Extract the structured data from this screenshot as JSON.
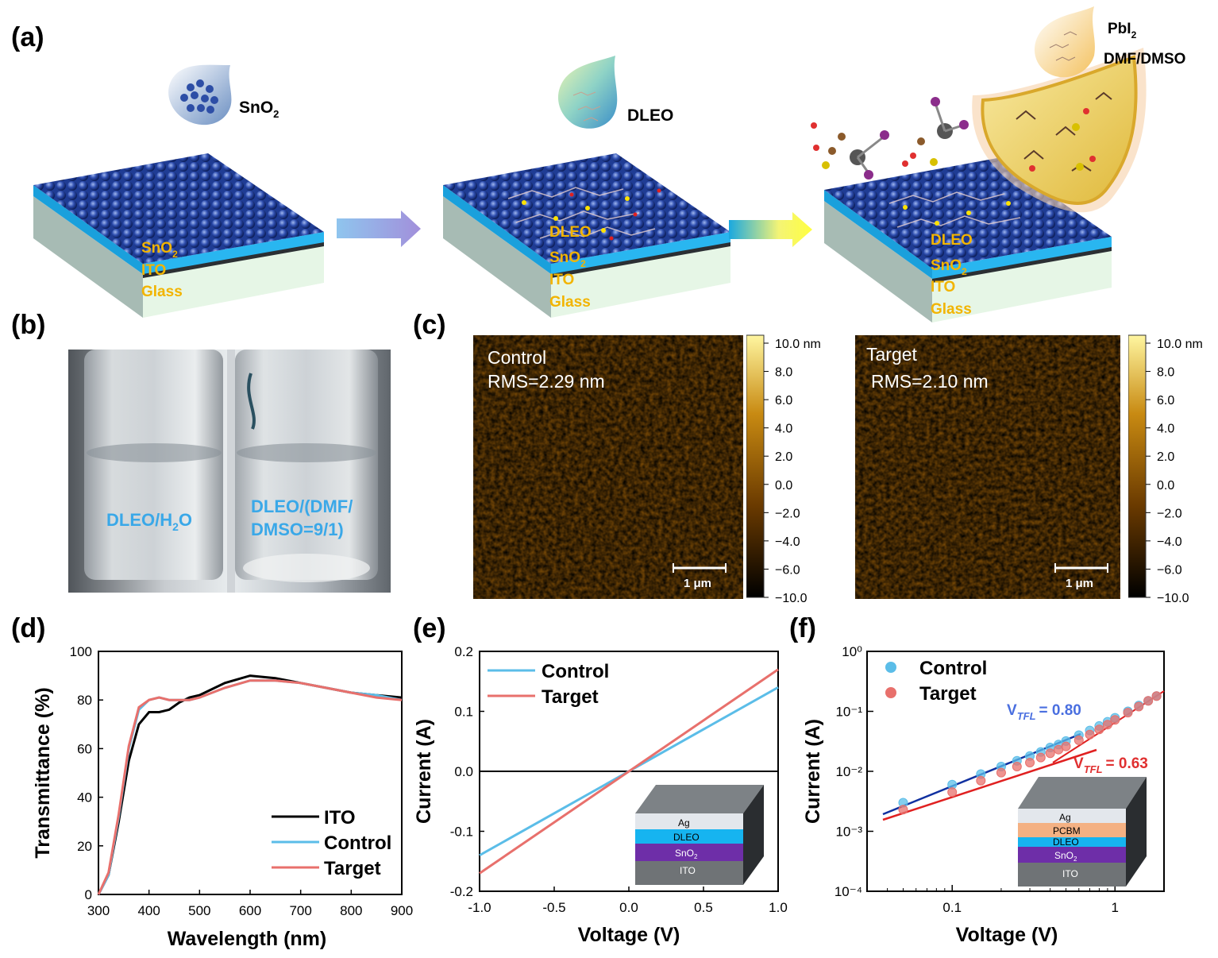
{
  "panels": {
    "a": {
      "label": "(a)",
      "drop1": "SnO",
      "drop1_sub": "2",
      "drop2": "DLEO",
      "shield1": "PbI",
      "shield1_sub": "2",
      "shield2": "DMF/DMSO",
      "stack1": {
        "l1": "SnO",
        "l1_sub": "2",
        "l2": "ITO",
        "l3": "Glass"
      },
      "stack2": {
        "l0": "DLEO",
        "l1": "SnO",
        "l1_sub": "2",
        "l2": "ITO",
        "l3": "Glass"
      },
      "stack3": {
        "l0": "DLEO",
        "l1": "SnO",
        "l1_sub": "2",
        "l2": "ITO",
        "l3": "Glass"
      }
    },
    "b": {
      "label": "(b)",
      "vial1": "DLEO/H",
      "vial1_sub": "2",
      "vial1_end": "O",
      "vial2_line1": "DLEO/(DMF/",
      "vial2_line2": "DMSO=9/1)"
    },
    "c": {
      "label": "(c)",
      "left": {
        "title": "Control",
        "rms": "RMS=2.29 nm",
        "scale": "1 μm"
      },
      "right": {
        "title": "Target",
        "rms": "RMS=2.10 nm",
        "scale": "1 μm"
      },
      "colorbar_ticks": [
        "10.0 nm",
        "8.0",
        "6.0",
        "4.0",
        "2.0",
        "0.0",
        "−2.0",
        "−4.0",
        "−6.0",
        "−10.0"
      ]
    },
    "d": {
      "label": "(d)"
    },
    "e": {
      "label": "(e)",
      "inset": {
        "ag": "Ag",
        "dleo": "DLEO",
        "sno": "SnO",
        "sno_sub": "2",
        "ito": "ITO"
      }
    },
    "f": {
      "label": "(f)",
      "vtfl_c": "= 0.80",
      "vtfl_t": "= 0.63",
      "vtfl_v": "V",
      "vtfl_sub": "TFL",
      "inset": {
        "ag": "Ag",
        "pcbm": "PCBM",
        "dleo": "DLEO",
        "sno": "SnO",
        "sno_sub": "2",
        "ito": "ITO"
      }
    }
  },
  "chart_data": [
    {
      "id": "d",
      "type": "line",
      "xlabel": "Wavelength (nm)",
      "ylabel": "Transmittance (%)",
      "xlim": [
        300,
        900
      ],
      "ylim": [
        0,
        100
      ],
      "xticks": [
        "300",
        "400",
        "500",
        "600",
        "700",
        "800",
        "900"
      ],
      "yticks": [
        "0",
        "20",
        "40",
        "60",
        "80",
        "100"
      ],
      "x": [
        300,
        320,
        340,
        360,
        380,
        400,
        420,
        440,
        460,
        480,
        500,
        550,
        600,
        650,
        700,
        750,
        800,
        850,
        900
      ],
      "series": [
        {
          "name": "ITO",
          "color": "#000000",
          "values": [
            0,
            8,
            30,
            55,
            70,
            75,
            75,
            76,
            79,
            81,
            82,
            87,
            90,
            89,
            87,
            85,
            83,
            82,
            81
          ]
        },
        {
          "name": "Control",
          "color": "#5bbde8",
          "values": [
            0,
            8,
            32,
            60,
            76,
            80,
            81,
            80,
            80,
            80,
            81,
            85,
            88,
            88,
            87,
            85,
            83,
            82,
            80
          ]
        },
        {
          "name": "Target",
          "color": "#e8706c",
          "values": [
            0,
            9,
            33,
            61,
            77,
            80,
            81,
            80,
            80,
            80,
            81,
            85,
            88,
            88,
            87,
            85,
            83,
            81,
            80
          ]
        }
      ]
    },
    {
      "id": "e",
      "type": "line",
      "xlabel": "Voltage (V)",
      "ylabel": "Current (A)",
      "xlim": [
        -1,
        1
      ],
      "ylim": [
        -0.2,
        0.2
      ],
      "xticks": [
        "-1.0",
        "-0.5",
        "0.0",
        "0.5",
        "1.0"
      ],
      "yticks": [
        "0.2",
        "0.1",
        "0.0",
        "-0.1",
        "-0.2"
      ],
      "series": [
        {
          "name": "Control",
          "color": "#5bbde8",
          "x": [
            -1,
            1
          ],
          "values": [
            -0.14,
            0.14
          ]
        },
        {
          "name": "Target",
          "color": "#e8706c",
          "x": [
            -1,
            1
          ],
          "values": [
            -0.17,
            0.17
          ]
        }
      ]
    },
    {
      "id": "f",
      "type": "scatter",
      "xlabel": "Voltage (V)",
      "ylabel": "Current (A)",
      "xscale": "log",
      "yscale": "log",
      "xlim": [
        0.03,
        2
      ],
      "ylim": [
        0.0001,
        1
      ],
      "xticks": [
        "0.1",
        "1"
      ],
      "yticks": [
        "10⁰",
        "10⁻¹",
        "10⁻²",
        "10⁻³",
        "10⁻⁴"
      ],
      "series": [
        {
          "name": "Control",
          "color": "#5bbde8",
          "x": [
            0.05,
            0.1,
            0.15,
            0.2,
            0.25,
            0.3,
            0.35,
            0.4,
            0.45,
            0.5,
            0.6,
            0.7,
            0.8,
            0.9,
            1.0,
            1.2,
            1.4,
            1.6,
            1.8
          ],
          "values": [
            0.003,
            0.006,
            0.009,
            0.012,
            0.015,
            0.018,
            0.021,
            0.025,
            0.028,
            0.032,
            0.04,
            0.048,
            0.057,
            0.067,
            0.078,
            0.1,
            0.125,
            0.15,
            0.18
          ]
        },
        {
          "name": "Target",
          "color": "#e8706c",
          "x": [
            0.05,
            0.1,
            0.15,
            0.2,
            0.25,
            0.3,
            0.35,
            0.4,
            0.45,
            0.5,
            0.6,
            0.7,
            0.8,
            0.9,
            1.0,
            1.2,
            1.4,
            1.6,
            1.8
          ],
          "values": [
            0.0023,
            0.0045,
            0.007,
            0.0095,
            0.012,
            0.014,
            0.017,
            0.02,
            0.023,
            0.026,
            0.033,
            0.041,
            0.05,
            0.06,
            0.072,
            0.095,
            0.12,
            0.15,
            0.18
          ]
        }
      ]
    }
  ]
}
